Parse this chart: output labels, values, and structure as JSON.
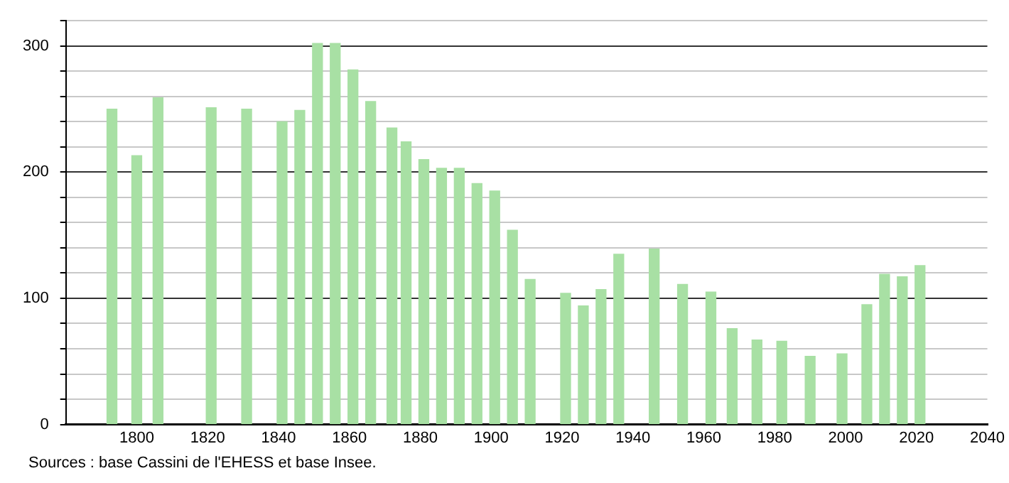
{
  "chart_data": {
    "type": "bar",
    "x": [
      1793,
      1800,
      1806,
      1821,
      1831,
      1841,
      1846,
      1851,
      1856,
      1861,
      1866,
      1872,
      1876,
      1881,
      1886,
      1891,
      1896,
      1901,
      1906,
      1911,
      1921,
      1926,
      1931,
      1936,
      1946,
      1954,
      1962,
      1968,
      1975,
      1982,
      1990,
      1999,
      2006,
      2011,
      2016,
      2021
    ],
    "values": [
      250,
      213,
      259,
      251,
      250,
      240,
      249,
      302,
      302,
      281,
      256,
      235,
      224,
      210,
      203,
      203,
      191,
      185,
      154,
      115,
      104,
      94,
      107,
      135,
      139,
      111,
      105,
      76,
      67,
      66,
      54,
      56,
      95,
      119,
      117,
      126
    ],
    "color": "#a8e0a4",
    "xlim": [
      1780,
      2040
    ],
    "xticks": [
      1800,
      1820,
      1840,
      1860,
      1880,
      1900,
      1920,
      1940,
      1960,
      1980,
      2000,
      2020,
      2040
    ],
    "ylim": [
      0,
      320
    ],
    "yticks": [
      0,
      {
        "value": 20,
        "label": null
      },
      {
        "value": 40,
        "label": null
      },
      {
        "value": 60,
        "label": null
      },
      {
        "value": 80,
        "label": null
      },
      100,
      {
        "value": 120,
        "label": null
      },
      {
        "value": 140,
        "label": null
      },
      {
        "value": 160,
        "label": null
      },
      {
        "value": 180,
        "label": null
      },
      200,
      {
        "value": 220,
        "label": null
      },
      {
        "value": 240,
        "label": null
      },
      {
        "value": 260,
        "label": null
      },
      {
        "value": 280,
        "label": null
      },
      300,
      {
        "value": 320,
        "label": null
      }
    ],
    "grid": "y",
    "annotations": [
      "Sources : base Cassini de l'EHESS et base Insee."
    ]
  }
}
